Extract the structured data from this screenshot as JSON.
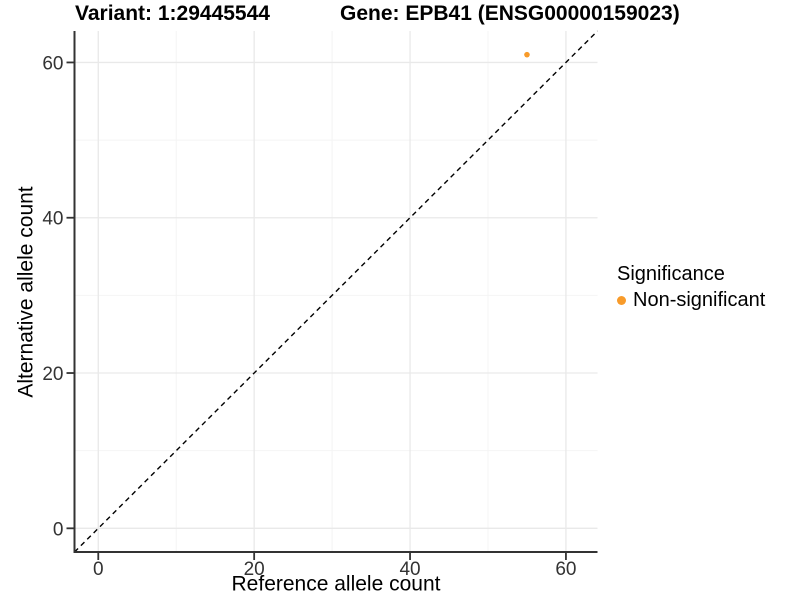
{
  "titles": {
    "variant": "Variant: 1:29445544",
    "gene": "Gene: EPB41 (ENSG00000159023)"
  },
  "axes": {
    "x_label": "Reference allele count",
    "y_label": "Alternative allele count"
  },
  "legend": {
    "title": "Significance",
    "items": [
      {
        "label": "Non-significant",
        "color": "#F89B2A"
      }
    ]
  },
  "colors": {
    "point": "#F89B2A",
    "grid_major": "#E9E9E9",
    "grid_minor": "#F4F4F4",
    "axis_line": "#333333",
    "tick_label": "#333333",
    "reference_line": "#000000",
    "background": "#FFFFFF"
  },
  "chart_data": {
    "type": "scatter",
    "title": "",
    "xlabel": "Reference allele count",
    "ylabel": "Alternative allele count",
    "xlim": [
      -3.05,
      64.05
    ],
    "ylim": [
      -3.05,
      64.05
    ],
    "x_major_ticks": [
      0,
      20,
      40,
      60
    ],
    "y_major_ticks": [
      0,
      20,
      40,
      60
    ],
    "x_minor_ticks": [
      10,
      30,
      50
    ],
    "y_minor_ticks": [
      10,
      30,
      50
    ],
    "grid": true,
    "legend_position": "right",
    "reference_line": {
      "type": "identity y=x",
      "style": "dashed",
      "color": "#000000"
    },
    "series": [
      {
        "name": "Non-significant",
        "color": "#F89B2A",
        "points": [
          {
            "x": 55,
            "y": 61
          }
        ]
      }
    ]
  }
}
